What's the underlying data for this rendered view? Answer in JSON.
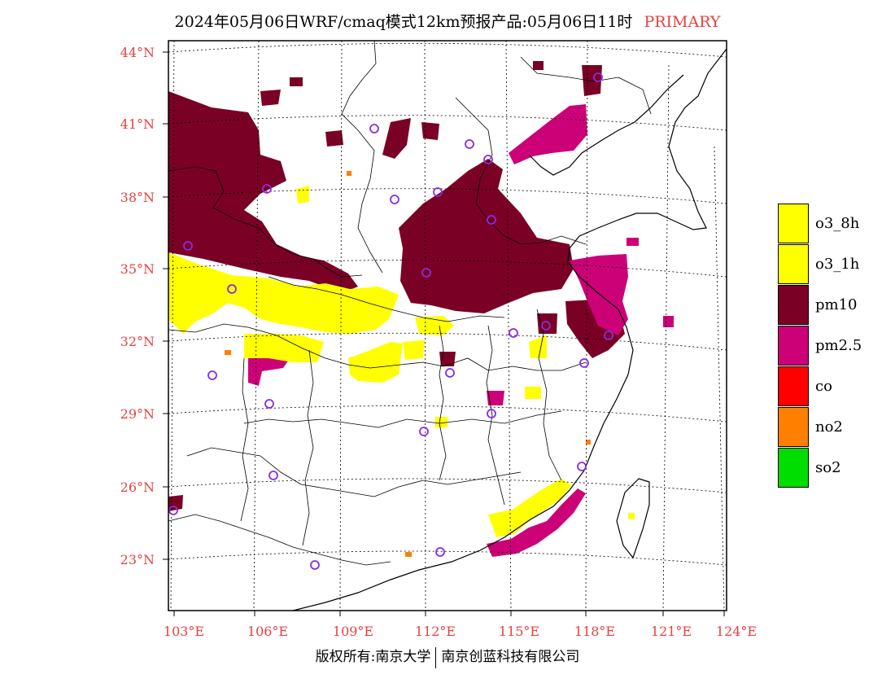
{
  "title": {
    "main": "2024年05月06日WRF/cmaq模式12km预报产品:05月06日11时",
    "tag": "PRIMARY"
  },
  "axes": {
    "lat_labels": [
      "44°N",
      "41°N",
      "38°N",
      "35°N",
      "32°N",
      "29°N",
      "26°N",
      "23°N"
    ],
    "lon_labels": [
      "103°E",
      "106°E",
      "109°E",
      "112°E",
      "115°E",
      "118°E",
      "121°E",
      "124°E"
    ]
  },
  "legend": {
    "items": [
      {
        "label": "o3_8h",
        "color": "#ffff00"
      },
      {
        "label": "o3_1h",
        "color": "#ffff00"
      },
      {
        "label": "pm10",
        "color": "#7a0025"
      },
      {
        "label": "pm2.5",
        "color": "#cc0077"
      },
      {
        "label": "co",
        "color": "#ff0000"
      },
      {
        "label": "no2",
        "color": "#ff7f00"
      },
      {
        "label": "so2",
        "color": "#00dd00"
      }
    ]
  },
  "colors": {
    "pm10": "#7a0025",
    "pm25": "#cc0077",
    "o3": "#ffff00",
    "no2": "#ff7f00",
    "station": "#8a2be2",
    "tick_label": "#e8413f"
  },
  "footer": {
    "left": "版权所有:南京大学",
    "right": "南京创蓝科技有限公司"
  }
}
